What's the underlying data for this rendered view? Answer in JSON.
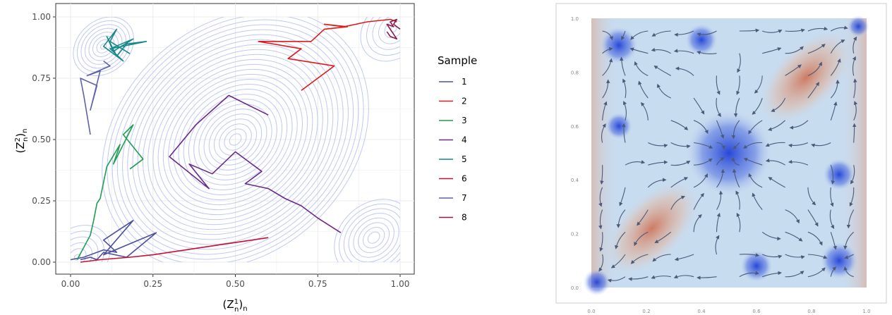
{
  "chart_data": [
    {
      "type": "line",
      "xlabel": "(Z",
      "xlabel_sup": "1",
      "xlabel_sub": "n",
      "xlabel_close": ")",
      "xlabel_sub2": "n",
      "ylabel": "(Z",
      "ylabel_sup": "2",
      "ylabel_sub": "n",
      "ylabel_close": ")",
      "ylabel_sub2": "n",
      "xlim": [
        0,
        1
      ],
      "ylim": [
        0,
        1
      ],
      "x_ticks": [
        "0.00",
        "0.25",
        "0.50",
        "0.75",
        "1.00"
      ],
      "y_ticks": [
        "0.00",
        "0.25",
        "0.50",
        "0.75",
        "1.00"
      ],
      "grid": true,
      "background_contours": true,
      "contour_color": "#b3bff2",
      "legend_title": "Sample",
      "legend_position": "right",
      "series": [
        {
          "name": "1",
          "color": "#4b4f9c",
          "x": [
            0.0,
            0.04,
            0.1,
            0.14,
            0.1,
            0.19,
            0.1,
            0.26,
            0.17,
            0.1,
            0.08,
            0.06,
            0.03
          ],
          "y": [
            0.01,
            0.02,
            0.05,
            0.04,
            0.09,
            0.17,
            0.03,
            0.12,
            0.02,
            0.04,
            0.01,
            0.02,
            0.01
          ]
        },
        {
          "name": "2",
          "color": "#e01a1a",
          "x": [
            0.7,
            0.8,
            0.66,
            0.7,
            0.57,
            0.73,
            0.77,
            0.84,
            0.77,
            0.83,
            0.9,
            0.97,
            0.99
          ],
          "y": [
            0.7,
            0.8,
            0.83,
            0.87,
            0.9,
            0.9,
            0.95,
            0.96,
            0.97,
            0.96,
            0.98,
            0.99,
            0.98
          ]
        },
        {
          "name": "3",
          "color": "#1e9e50",
          "x": [
            0.02,
            0.04,
            0.06,
            0.07,
            0.08,
            0.09,
            0.11,
            0.15,
            0.13,
            0.19,
            0.16,
            0.22,
            0.18
          ],
          "y": [
            0.01,
            0.06,
            0.11,
            0.17,
            0.24,
            0.26,
            0.39,
            0.48,
            0.4,
            0.56,
            0.52,
            0.42,
            0.38
          ]
        },
        {
          "name": "4",
          "color": "#6b2a8a",
          "x": [
            0.82,
            0.75,
            0.7,
            0.65,
            0.6,
            0.53,
            0.58,
            0.5,
            0.43,
            0.36,
            0.42,
            0.3,
            0.38,
            0.48,
            0.6
          ],
          "y": [
            0.12,
            0.18,
            0.23,
            0.26,
            0.3,
            0.32,
            0.37,
            0.45,
            0.36,
            0.4,
            0.3,
            0.43,
            0.56,
            0.68,
            0.6
          ]
        },
        {
          "name": "5",
          "color": "#17888a",
          "x": [
            0.18,
            0.12,
            0.14,
            0.1,
            0.16,
            0.12,
            0.19,
            0.13,
            0.11,
            0.14,
            0.17,
            0.23,
            0.12
          ],
          "y": [
            0.85,
            0.9,
            0.95,
            0.88,
            0.82,
            0.87,
            0.91,
            0.86,
            0.92,
            0.84,
            0.89,
            0.9,
            0.87
          ]
        },
        {
          "name": "6",
          "color": "#c8102e",
          "x": [
            0.03,
            0.09,
            0.18,
            0.25,
            0.35,
            0.45,
            0.55,
            0.6
          ],
          "y": [
            0.0,
            0.01,
            0.02,
            0.03,
            0.05,
            0.07,
            0.09,
            0.1
          ]
        },
        {
          "name": "7",
          "color": "#5e62a8",
          "x": [
            0.06,
            0.04,
            0.03,
            0.08,
            0.06,
            0.09,
            0.05,
            0.12,
            0.1
          ],
          "y": [
            0.52,
            0.68,
            0.75,
            0.72,
            0.62,
            0.78,
            0.76,
            0.8,
            0.82
          ]
        },
        {
          "name": "8",
          "color": "#8b1a4a",
          "x": [
            1.0,
            0.98,
            0.99,
            0.97,
            0.98,
            0.96,
            0.98,
            0.99,
            0.97,
            0.96
          ],
          "y": [
            0.95,
            0.97,
            0.99,
            0.98,
            0.96,
            0.97,
            0.93,
            0.91,
            0.92,
            0.94
          ]
        }
      ]
    },
    {
      "type": "heatmap",
      "subtype": "streamplot",
      "xlim": [
        0,
        1
      ],
      "ylim": [
        0,
        1
      ],
      "x_ticks": [
        "0.0",
        "0.2",
        "0.4",
        "0.6",
        "0.8",
        "1.0"
      ],
      "y_ticks": [
        "0.0",
        "0.2",
        "0.4",
        "0.6",
        "0.8",
        "1.0"
      ],
      "colormap": [
        "#1f3fd6",
        "#c8dcf0",
        "#cf6a4a"
      ],
      "stream_color": "#4b5a78"
    }
  ]
}
